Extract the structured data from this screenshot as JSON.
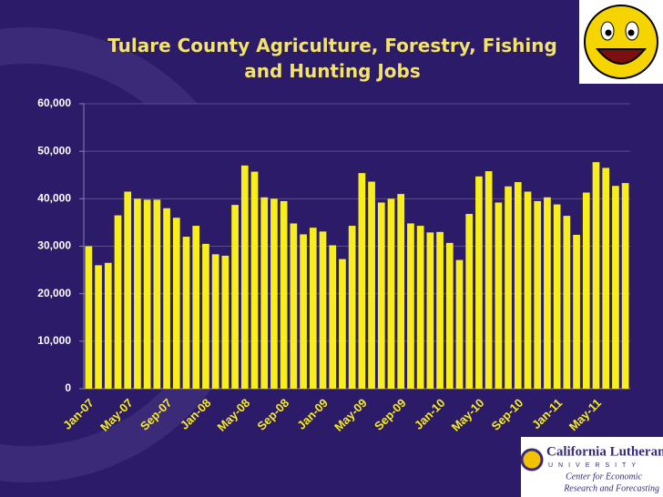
{
  "chart_data": {
    "type": "bar",
    "title": "Tulare County Agriculture, Forestry, Fishing and Hunting Jobs",
    "categories": [
      "Jan-07",
      null,
      null,
      null,
      "May-07",
      null,
      null,
      null,
      "Sep-07",
      null,
      null,
      null,
      "Jan-08",
      null,
      null,
      null,
      "May-08",
      null,
      null,
      null,
      "Sep-08",
      null,
      null,
      null,
      "Jan-09",
      null,
      null,
      null,
      "May-09",
      null,
      null,
      null,
      "Sep-09",
      null,
      null,
      null,
      "Jan-10",
      null,
      null,
      null,
      "May-10",
      null,
      null,
      null,
      "Sep-10",
      null,
      null,
      null,
      "Jan-11",
      null,
      null,
      null,
      "May-11",
      null,
      null,
      null
    ],
    "values": [
      30000,
      26000,
      26500,
      36500,
      41500,
      40000,
      39800,
      39800,
      38000,
      36000,
      32000,
      34300,
      30500,
      28300,
      28000,
      38700,
      47000,
      45700,
      40300,
      40000,
      39500,
      34800,
      32500,
      33900,
      33100,
      30200,
      27300,
      34300,
      45400,
      43600,
      39200,
      40000,
      41000,
      34800,
      34300,
      32900,
      33000,
      30700,
      27100,
      36800,
      44700,
      45800,
      39200,
      42600,
      43500,
      41500,
      39500,
      40300,
      38800,
      36400,
      32400,
      41300,
      47700,
      46500,
      42700,
      43300
    ],
    "color": "#f7ee1c",
    "ylim": [
      0,
      60000
    ],
    "yticks": [
      0,
      {
        "value": 10000,
        "label": "10,000"
      },
      {
        "value": 20000,
        "label": "20,000"
      },
      {
        "value": 30000,
        "label": "30,000"
      },
      {
        "value": 40000,
        "label": "40,000"
      },
      {
        "value": 50000,
        "label": "50,000"
      },
      {
        "value": 60000,
        "label": "60,000"
      }
    ],
    "grid": true
  },
  "logo": {
    "name": "California Lutheran",
    "university": "UNIVERSITY",
    "center": "Center for Economic",
    "center2": "Research and Forecasting"
  }
}
